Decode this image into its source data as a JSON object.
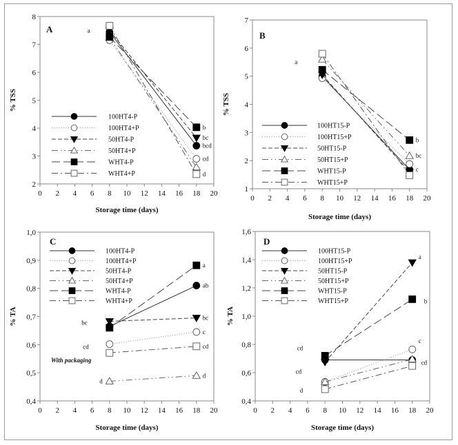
{
  "figure": {
    "frame_color": "#9a9a9a",
    "line_color": "#333333",
    "axis_color": "#888888"
  },
  "chart_data": [
    {
      "id": "A",
      "type": "line",
      "panel_label": "A",
      "title": "",
      "xlabel": "Storage time (days)",
      "ylabel": "% TSS",
      "xlim": [
        0,
        20
      ],
      "ylim": [
        2,
        8
      ],
      "xticks": [
        0,
        2,
        4,
        6,
        8,
        10,
        12,
        14,
        16,
        18,
        20
      ],
      "yticks": [
        2,
        3,
        4,
        5,
        6,
        7,
        8
      ],
      "ytick_labels": [
        "2",
        "3",
        "4",
        "5",
        "6",
        "7",
        "8"
      ],
      "grid": false,
      "legend_position": "center-left",
      "x": [
        8,
        18
      ],
      "series": [
        {
          "name": "100HT4-P",
          "marker": "circle-filled",
          "dash": "solid",
          "values": [
            7.45,
            3.37
          ],
          "sig": [
            "",
            "bcd"
          ]
        },
        {
          "name": "100HT4+P",
          "marker": "circle-open",
          "dash": "dotted",
          "values": [
            7.15,
            2.9
          ],
          "sig": [
            "",
            "cd"
          ]
        },
        {
          "name": "50HT4-P",
          "marker": "triangle-down-filled",
          "dash": "dashed",
          "values": [
            7.5,
            3.65
          ],
          "sig": [
            "a",
            "bc"
          ]
        },
        {
          "name": "50HT4+P",
          "marker": "triangle-up-open",
          "dash": "dashdotdot",
          "values": [
            7.25,
            2.6
          ],
          "sig": [
            "",
            ""
          ]
        },
        {
          "name": "WHT4-P",
          "marker": "square-filled",
          "dash": "longdash",
          "values": [
            7.27,
            4.03
          ],
          "sig": [
            "",
            "b"
          ]
        },
        {
          "name": "WHT4+P",
          "marker": "square-open",
          "dash": "dashdot",
          "values": [
            7.67,
            2.35
          ],
          "sig": [
            "",
            "d"
          ]
        }
      ],
      "annotations": []
    },
    {
      "id": "B",
      "type": "line",
      "panel_label": "B",
      "title": "",
      "xlabel": "Storage time (days)",
      "ylabel": "% TSS",
      "xlim": [
        0,
        20
      ],
      "ylim": [
        1,
        7
      ],
      "xticks": [
        0,
        2,
        4,
        6,
        8,
        10,
        12,
        14,
        16,
        18,
        20
      ],
      "yticks": [
        1,
        2,
        3,
        4,
        5,
        6,
        7
      ],
      "ytick_labels": [
        "1",
        "2",
        "3",
        "4",
        "5",
        "6",
        "7"
      ],
      "grid": false,
      "legend_position": "bottom-left",
      "x": [
        8,
        18
      ],
      "series": [
        {
          "name": "100HT15-P",
          "marker": "circle-filled",
          "dash": "solid",
          "values": [
            5.0,
            1.68
          ],
          "sig": [
            "",
            "c"
          ]
        },
        {
          "name": "100HT15+P",
          "marker": "circle-open",
          "dash": "dotted",
          "values": [
            4.93,
            1.88
          ],
          "sig": [
            "",
            ""
          ]
        },
        {
          "name": "50HT15-P",
          "marker": "triangle-down-filled",
          "dash": "dashed",
          "values": [
            5.05,
            1.6
          ],
          "sig": [
            "",
            ""
          ]
        },
        {
          "name": "50HT15+P",
          "marker": "triangle-up-open",
          "dash": "dashdotdot",
          "values": [
            5.6,
            2.17
          ],
          "sig": [
            "a",
            "bc"
          ]
        },
        {
          "name": "WHT15-P",
          "marker": "square-filled",
          "dash": "longdash",
          "values": [
            5.23,
            2.73
          ],
          "sig": [
            "",
            "b"
          ]
        },
        {
          "name": "WHT15+P",
          "marker": "square-open",
          "dash": "dashdot",
          "values": [
            5.8,
            1.48
          ],
          "sig": [
            "",
            ""
          ]
        }
      ],
      "annotations": []
    },
    {
      "id": "C",
      "type": "line",
      "panel_label": "C",
      "title": "",
      "xlabel": "Storage time (days)",
      "ylabel": "% TA",
      "xlim": [
        0,
        20
      ],
      "ylim": [
        0.4,
        1.0
      ],
      "xticks": [
        0,
        2,
        4,
        6,
        8,
        10,
        12,
        14,
        16,
        18,
        20
      ],
      "yticks": [
        0.4,
        0.5,
        0.6,
        0.7,
        0.8,
        0.9,
        1.0
      ],
      "ytick_labels": [
        "0,4",
        "0,5",
        "0,6",
        "0,7",
        "0,8",
        "0,9",
        "1,0"
      ],
      "grid": false,
      "legend_position": "top-left",
      "x": [
        8,
        18
      ],
      "series": [
        {
          "name": "100HT4-P",
          "marker": "circle-filled",
          "dash": "solid",
          "values": [
            0.665,
            0.81
          ],
          "sig": [
            "",
            "ab"
          ]
        },
        {
          "name": "100HT4+P",
          "marker": "circle-open",
          "dash": "dotted",
          "values": [
            0.602,
            0.645
          ],
          "sig": [
            "cd",
            "c"
          ]
        },
        {
          "name": "50HT4-P",
          "marker": "triangle-down-filled",
          "dash": "dashed",
          "values": [
            0.683,
            0.695
          ],
          "sig": [
            "bc",
            "bc"
          ]
        },
        {
          "name": "50HT4+P",
          "marker": "triangle-up-open",
          "dash": "dashdotdot",
          "values": [
            0.47,
            0.49
          ],
          "sig": [
            "d",
            "d"
          ]
        },
        {
          "name": "WHT4-P",
          "marker": "square-filled",
          "dash": "longdash",
          "values": [
            0.66,
            0.882
          ],
          "sig": [
            "",
            "a"
          ]
        },
        {
          "name": "WHT4+P",
          "marker": "square-open",
          "dash": "dashdot",
          "values": [
            0.571,
            0.594
          ],
          "sig": [
            "",
            "cd"
          ]
        }
      ],
      "annotations": [
        "With packaging"
      ]
    },
    {
      "id": "D",
      "type": "line",
      "panel_label": "D",
      "title": "",
      "xlabel": "Storage time (days)",
      "ylabel": "% TA",
      "xlim": [
        0,
        20
      ],
      "ylim": [
        0.4,
        1.6
      ],
      "xticks": [
        0,
        2,
        4,
        6,
        8,
        10,
        12,
        14,
        16,
        18,
        20
      ],
      "yticks": [
        0.4,
        0.6,
        0.8,
        1.0,
        1.2,
        1.4,
        1.6
      ],
      "ytick_labels": [
        "0,4",
        "0,6",
        "0,8",
        "1,0",
        "1,2",
        "1,4",
        "1,6"
      ],
      "grid": false,
      "legend_position": "top-left",
      "x": [
        8,
        18
      ],
      "series": [
        {
          "name": "100HT15-P",
          "marker": "circle-filled",
          "dash": "solid",
          "values": [
            0.69,
            0.69
          ],
          "sig": [
            "",
            ""
          ]
        },
        {
          "name": "100HT15+P",
          "marker": "circle-open",
          "dash": "dotted",
          "values": [
            0.535,
            0.765
          ],
          "sig": [
            "",
            "c"
          ]
        },
        {
          "name": "50HT15-P",
          "marker": "triangle-down-filled",
          "dash": "dashed",
          "values": [
            0.675,
            1.38
          ],
          "sig": [
            "",
            "a"
          ]
        },
        {
          "name": "50HT15+P",
          "marker": "triangle-up-open",
          "dash": "dashdotdot",
          "values": [
            0.535,
            0.695
          ],
          "sig": [
            "cd",
            "cd"
          ]
        },
        {
          "name": "WHT15-P",
          "marker": "square-filled",
          "dash": "longdash",
          "values": [
            0.72,
            1.12
          ],
          "sig": [
            "cd",
            "b"
          ]
        },
        {
          "name": "WHT15+P",
          "marker": "square-open",
          "dash": "dashdot",
          "values": [
            0.483,
            0.648
          ],
          "sig": [
            "d",
            ""
          ]
        }
      ],
      "annotations": []
    }
  ]
}
